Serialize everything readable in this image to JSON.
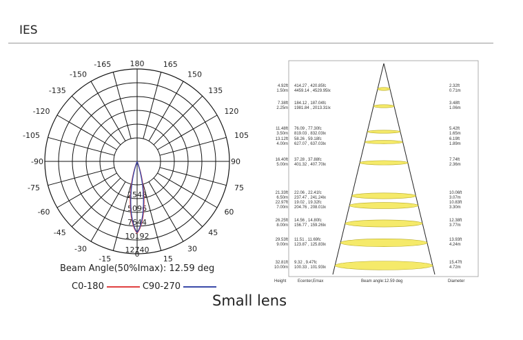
{
  "header": {
    "title": "IES"
  },
  "polar": {
    "angle_labels": [
      "180",
      "165",
      "150",
      "135",
      "120",
      "105",
      "90",
      "75",
      "60",
      "45",
      "30",
      "15",
      "0",
      "-15",
      "-30",
      "-45",
      "-60",
      "-75",
      "-90",
      "-105",
      "-120",
      "-135",
      "-150",
      "-165"
    ],
    "ring_labels": [
      "2548",
      "5096",
      "7644",
      "10192",
      "12740"
    ],
    "beam_angle_text": "Beam Angle(50%Imax): 12.59 deg",
    "legend": [
      {
        "label": "C0-180",
        "color": "#e04040"
      },
      {
        "label": "C90-270",
        "color": "#3a4aa8"
      }
    ]
  },
  "cone": {
    "rows": [
      {
        "height_ft": "4.92ft",
        "height_m": "1.50m",
        "fc": "414.27 , 420.85fc",
        "lx": "4459.14 , 4529.95lx",
        "dia_ft": "2.32ft",
        "dia_m": "0.71m"
      },
      {
        "height_ft": "7.38ft",
        "height_m": "2.25m",
        "fc": "184.12 , 187.04fc",
        "lx": "1981.84 , 2013.31lx",
        "dia_ft": "3.48ft",
        "dia_m": "1.06m"
      },
      {
        "height_ft": "11.48ft",
        "height_m": "3.50m",
        "fc": "76.09 , 77.30fc",
        "lx": "819.03 , 832.03lx",
        "dia_ft": "5.42ft",
        "dia_m": "1.65m"
      },
      {
        "height_ft": "13.12ft",
        "height_m": "4.00m",
        "fc": "58.26 , 59.18fc",
        "lx": "627.07 , 637.03lx",
        "dia_ft": "6.19ft",
        "dia_m": "1.89m"
      },
      {
        "height_ft": "16.40ft",
        "height_m": "5.00m",
        "fc": "37.28 , 37.88fc",
        "lx": "401.32 , 407.70lx",
        "dia_ft": "7.74ft",
        "dia_m": "2.36m"
      },
      {
        "height_ft": "21.33ft",
        "height_m": "6.50m",
        "fc": "22.06 , 22.41fc",
        "lx": "237.47 , 241.24lx",
        "dia_ft": "10.06ft",
        "dia_m": "3.07m"
      },
      {
        "height_ft": "22.97ft",
        "height_m": "7.00m",
        "fc": "19.02 , 19.32fc",
        "lx": "204.76 , 208.01lx",
        "dia_ft": "10.83ft",
        "dia_m": "3.30m"
      },
      {
        "height_ft": "26.25ft",
        "height_m": "8.00m",
        "fc": "14.56 , 14.80fc",
        "lx": "156.77 , 159.26lx",
        "dia_ft": "12.38ft",
        "dia_m": "3.77m"
      },
      {
        "height_ft": "29.53ft",
        "height_m": "9.00m",
        "fc": "11.51 , 11.69fc",
        "lx": "123.87 , 125.83lx",
        "dia_ft": "13.93ft",
        "dia_m": "4.24m"
      },
      {
        "height_ft": "32.81ft",
        "height_m": "10.00m",
        "fc": "9.32 , 9.47fc",
        "lx": "100.33 , 101.93lx",
        "dia_ft": "15.47ft",
        "dia_m": "4.72m"
      }
    ],
    "footer": {
      "height": "Height",
      "emax": "Ecenter,Emax",
      "beam": "Beam angle:12.59 deg",
      "diameter": "Diameter"
    },
    "fill_color": "#f5ea6a"
  },
  "caption": "Small lens"
}
